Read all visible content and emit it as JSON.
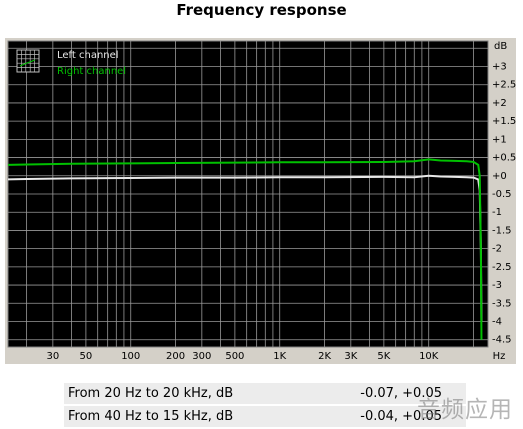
{
  "chart_data": {
    "type": "line",
    "title": "Frequency response",
    "xlabel": "Hz",
    "ylabel": "dB",
    "xscale": "log",
    "xlim": [
      15,
      25000
    ],
    "ylim": [
      -4.7,
      3.7
    ],
    "grid": true,
    "legend_position": "top-left",
    "x_tick_labels": [
      "30",
      "50",
      "100",
      "200",
      "300",
      "500",
      "1K",
      "2K",
      "3K",
      "5K",
      "10K"
    ],
    "x_ticks": [
      30,
      50,
      100,
      200,
      300,
      500,
      1000,
      2000,
      3000,
      5000,
      10000
    ],
    "y_tick_labels": [
      "+3",
      "+2.5",
      "+2",
      "+1.5",
      "+1",
      "+0.5",
      "+0",
      "-0.5",
      "-1",
      "-1.5",
      "-2",
      "-2.5",
      "-3",
      "-3.5",
      "-4",
      "-4.5"
    ],
    "y_ticks": [
      3,
      2.5,
      2,
      1.5,
      1,
      0.5,
      0,
      -0.5,
      -1,
      -1.5,
      -2,
      -2.5,
      -3,
      -3.5,
      -4,
      -4.5
    ],
    "series": [
      {
        "name": "Left channel",
        "color": "#e8e8e8",
        "x": [
          15,
          20,
          40,
          100,
          200,
          500,
          1000,
          2000,
          5000,
          8000,
          10000,
          12000,
          15000,
          18000,
          20000,
          21500,
          22000,
          22400,
          22600
        ],
        "y": [
          -0.1,
          -0.09,
          -0.07,
          -0.06,
          -0.05,
          -0.05,
          -0.04,
          -0.04,
          -0.03,
          -0.04,
          0.0,
          -0.02,
          -0.03,
          -0.04,
          -0.05,
          -0.1,
          -0.4,
          -2.0,
          -4.0
        ]
      },
      {
        "name": "Right channel",
        "color": "#00c000",
        "x": [
          15,
          20,
          40,
          100,
          200,
          500,
          1000,
          2000,
          5000,
          8000,
          10000,
          12000,
          15000,
          18000,
          20000,
          21500,
          22000,
          22400,
          22600
        ],
        "y": [
          0.3,
          0.31,
          0.33,
          0.34,
          0.35,
          0.36,
          0.37,
          0.37,
          0.38,
          0.4,
          0.45,
          0.42,
          0.41,
          0.4,
          0.38,
          0.3,
          0.0,
          -2.0,
          -4.5
        ]
      }
    ]
  },
  "summary": [
    {
      "label": "From 20 Hz to 20 kHz, dB",
      "value": "-0.07, +0.05"
    },
    {
      "label": "From 40 Hz to 15 kHz, dB",
      "value": "-0.04, +0.05"
    }
  ],
  "watermark": "音频应用"
}
